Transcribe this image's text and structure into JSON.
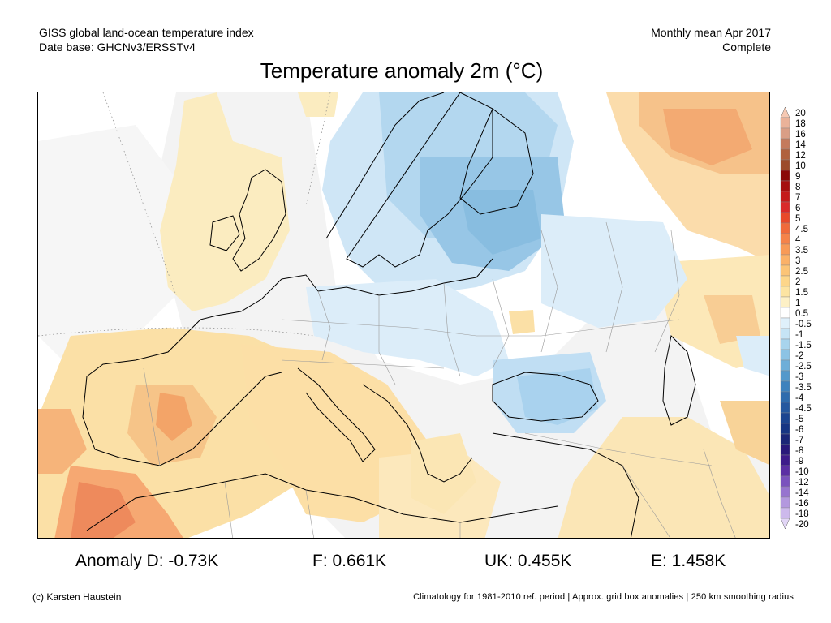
{
  "header": {
    "line1_left": "GISS global land-ocean temperature index",
    "line2_left": "Date base: GHCNv3/ERSSTv4",
    "line1_right": "Monthly mean Apr 2017",
    "line2_right": "Complete"
  },
  "title": "Temperature anomaly 2m (°C)",
  "colorbar": {
    "labels": [
      "20",
      "18",
      "16",
      "14",
      "12",
      "10",
      "9",
      "8",
      "7",
      "6",
      "5",
      "4.5",
      "4",
      "3.5",
      "3",
      "2.5",
      "2",
      "1.5",
      "1",
      "0.5",
      "-0.5",
      "-1",
      "-1.5",
      "-2",
      "-2.5",
      "-3",
      "-3.5",
      "-4",
      "-4.5",
      "-5",
      "-6",
      "-7",
      "-8",
      "-9",
      "-10",
      "-12",
      "-14",
      "-16",
      "-18",
      "-20"
    ],
    "colors": [
      "#f6c9b3",
      "#eab299",
      "#d99e86",
      "#c47a5c",
      "#b0613e",
      "#9c4c2b",
      "#8a0a0a",
      "#a50f0f",
      "#c41a1a",
      "#d92a2a",
      "#e8492b",
      "#f06a3b",
      "#f5834a",
      "#f89a57",
      "#fbb168",
      "#fcc477",
      "#fdd68a",
      "#fde4a2",
      "#fdf0c6",
      "#ffffff",
      "#dff0fb",
      "#c6e4f5",
      "#a8d4ed",
      "#8cc3e4",
      "#6eaed8",
      "#5499cb",
      "#3e82bd",
      "#2f6cad",
      "#25589f",
      "#1c4590",
      "#163583",
      "#1a2677",
      "#28187a",
      "#3d1b8a",
      "#5b2fa3",
      "#7a52bd",
      "#9774cf",
      "#b398de",
      "#cdb9ec",
      "#e2d6f6"
    ]
  },
  "stats": {
    "anomaly_d": "Anomaly D: -0.73K",
    "f": "F: 0.661K",
    "uk": "UK: 0.455K",
    "e": "E: 1.458K"
  },
  "footer": {
    "left": "(c) Karsten Haustein",
    "right": "Climatology for 1981-2010 ref. period | Approx. grid box anomalies | 250 km smoothing radius"
  }
}
